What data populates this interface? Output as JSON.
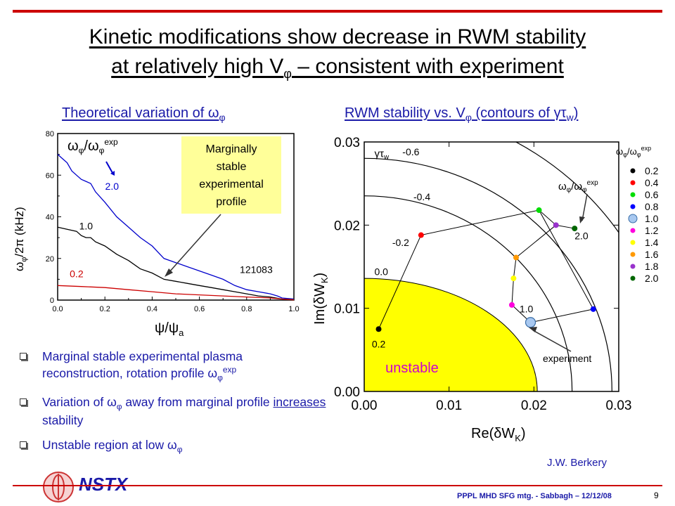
{
  "title": {
    "line1": "Kinetic modifications show decrease in RWM stability",
    "line2": "at relatively high Vφ – consistent with experiment"
  },
  "left_panel": {
    "subtitle": "Theoretical variation of ωφ"
  },
  "right_panel": {
    "subtitle": "RWM stability vs. Vφ (contours of γτw)"
  },
  "bullets": [
    "Marginal stable experimental plasma reconstruction, rotation profile ωφexp",
    "Variation of ωφ away from marginal profile increases stability",
    "Unstable region at low ωφ"
  ],
  "footer": {
    "logo": "NSTX",
    "meeting": "PPPL MHD SFG mtg. - Sabbagh – 12/12/08",
    "page": "9",
    "author": "J.W. Berkery"
  },
  "colors": {
    "rule": "#cc0000",
    "text_blue": "#1a1aa8",
    "note_yellow": "#ffff99",
    "unstable_fill": "#ffff00"
  },
  "chart_data": [
    {
      "type": "line",
      "title": "Theoretical variation of ωφ",
      "xlabel": "ψ/ψa",
      "ylabel": "ωφ/2π (kHz)",
      "xlim": [
        0.0,
        1.0
      ],
      "ylim": [
        0,
        80
      ],
      "xticks": [
        "0.0",
        "0.2",
        "0.4",
        "0.6",
        "0.8",
        "1.0"
      ],
      "yticks": [
        "0",
        "20",
        "40",
        "60",
        "80"
      ],
      "legend_label": "ωφ/ωφexp",
      "shot": "121083",
      "annotation": "Marginally stable experimental profile",
      "series": [
        {
          "name": "2.0",
          "color": "#0000cc",
          "x": [
            0.0,
            0.02,
            0.04,
            0.06,
            0.08,
            0.1,
            0.12,
            0.14,
            0.16,
            0.2,
            0.25,
            0.3,
            0.35,
            0.4,
            0.45,
            0.5,
            0.55,
            0.6,
            0.65,
            0.7,
            0.75,
            0.8,
            0.85,
            0.9,
            0.93,
            0.95,
            1.0
          ],
          "y": [
            70,
            68,
            66,
            62,
            60,
            58,
            57,
            56,
            52,
            47,
            40,
            35,
            30,
            26,
            20,
            18,
            16,
            14,
            12,
            10,
            7,
            5,
            4,
            3,
            2,
            1,
            0.5
          ]
        },
        {
          "name": "1.0",
          "color": "#000000",
          "x": [
            0.0,
            0.04,
            0.08,
            0.1,
            0.12,
            0.14,
            0.16,
            0.2,
            0.25,
            0.3,
            0.35,
            0.4,
            0.45,
            0.5,
            0.55,
            0.6,
            0.65,
            0.7,
            0.75,
            0.8,
            0.85,
            0.9,
            0.95,
            1.0
          ],
          "y": [
            35,
            34,
            33,
            31,
            30,
            30,
            28,
            26,
            22,
            19,
            15,
            13,
            10,
            9,
            8,
            7,
            6,
            5,
            4,
            3,
            2,
            1.5,
            0.5,
            0.2
          ]
        },
        {
          "name": "0.2",
          "color": "#cc0000",
          "x": [
            0.0,
            0.1,
            0.2,
            0.3,
            0.4,
            0.5,
            0.6,
            0.7,
            0.8,
            0.9,
            0.95,
            1.0
          ],
          "y": [
            7,
            6.5,
            6,
            5,
            4,
            3,
            2.5,
            2,
            1.5,
            1,
            0.5,
            0.1
          ]
        }
      ]
    },
    {
      "type": "scatter",
      "title": "RWM stability vs. Vφ (contours of γτw)",
      "xlabel": "Re(δWK)",
      "ylabel": "Im(δWK)",
      "xlim": [
        0.0,
        0.03
      ],
      "ylim": [
        0.0,
        0.03
      ],
      "xticks": [
        "0.00",
        "0.01",
        "0.02",
        "0.03"
      ],
      "yticks": [
        "0.00",
        "0.01",
        "0.02",
        "0.03"
      ],
      "contour_label": "γτw",
      "contours": [
        "-0.6",
        "-0.4",
        "-0.2",
        "0.0"
      ],
      "region_label": "unstable",
      "legend_title": "ωφ/ωφexp",
      "curve_label": "ωφ/ωφexp",
      "point_labels": [
        "0.2",
        "1.0",
        "2.0"
      ],
      "experiment_label": "experiment",
      "points": [
        {
          "ratio": "0.2",
          "x": 0.0017,
          "y": 0.0075,
          "color": "#000000"
        },
        {
          "ratio": "0.4",
          "x": 0.0067,
          "y": 0.0188,
          "color": "#ff0000"
        },
        {
          "ratio": "0.6",
          "x": 0.0206,
          "y": 0.0218,
          "color": "#00dd00"
        },
        {
          "ratio": "0.8",
          "x": 0.027,
          "y": 0.0099,
          "color": "#0000ff"
        },
        {
          "ratio": "1.0",
          "x": 0.0196,
          "y": 0.0083,
          "color": "#a8c8f0"
        },
        {
          "ratio": "1.2",
          "x": 0.0174,
          "y": 0.0104,
          "color": "#ff00dd"
        },
        {
          "ratio": "1.4",
          "x": 0.0176,
          "y": 0.0136,
          "color": "#ffff00"
        },
        {
          "ratio": "1.6",
          "x": 0.0179,
          "y": 0.0161,
          "color": "#ff9900"
        },
        {
          "ratio": "1.8",
          "x": 0.0226,
          "y": 0.02,
          "color": "#9933cc"
        },
        {
          "ratio": "2.0",
          "x": 0.0248,
          "y": 0.0196,
          "color": "#006600"
        }
      ]
    }
  ]
}
